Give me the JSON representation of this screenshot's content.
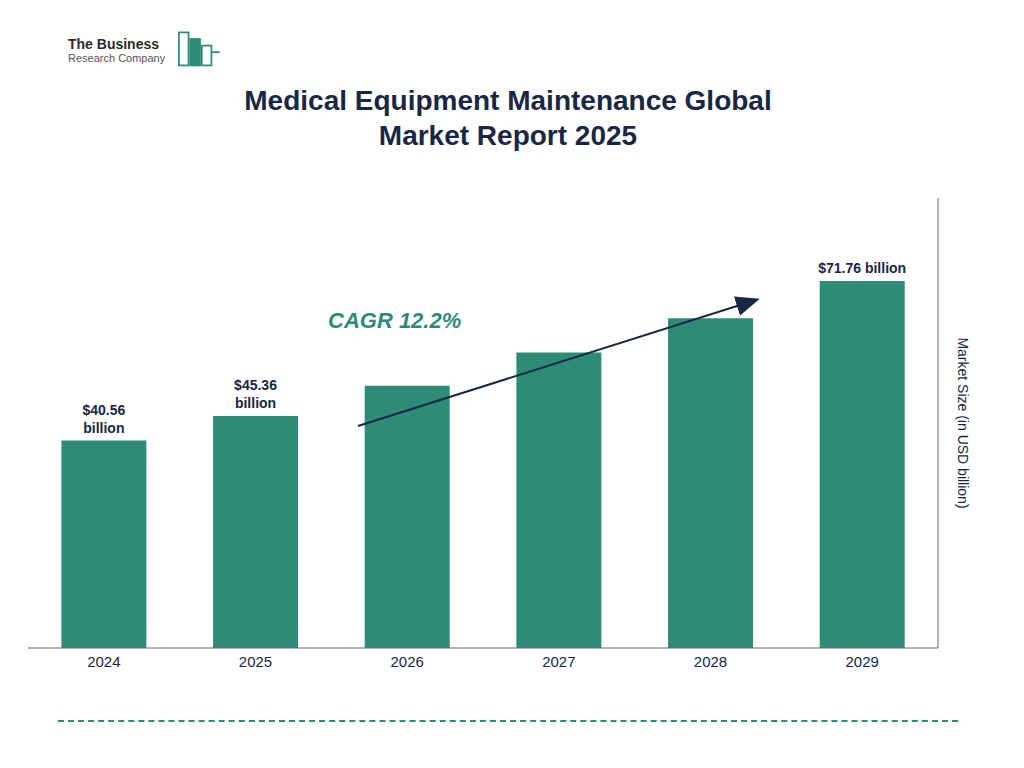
{
  "chart_data": {
    "type": "bar",
    "title": "Medical Equipment Maintenance Global\nMarket Report 2025",
    "categories": [
      "2024",
      "2025",
      "2026",
      "2027",
      "2028",
      "2029"
    ],
    "values": [
      40.56,
      45.36,
      51.3,
      57.8,
      64.5,
      71.76
    ],
    "value_labels": [
      "$40.56\nbillion",
      "$45.36\nbillion",
      null,
      null,
      null,
      "$71.76 billion"
    ],
    "color": "#2e8b77",
    "ylabel": "Market Size (in USD billion)",
    "ylim": [
      0,
      88
    ],
    "tick_labels": "x",
    "grid": false,
    "data_labels": true,
    "annotations": [
      "CAGR 12.2%",
      "The Business",
      "Research Company"
    ]
  }
}
